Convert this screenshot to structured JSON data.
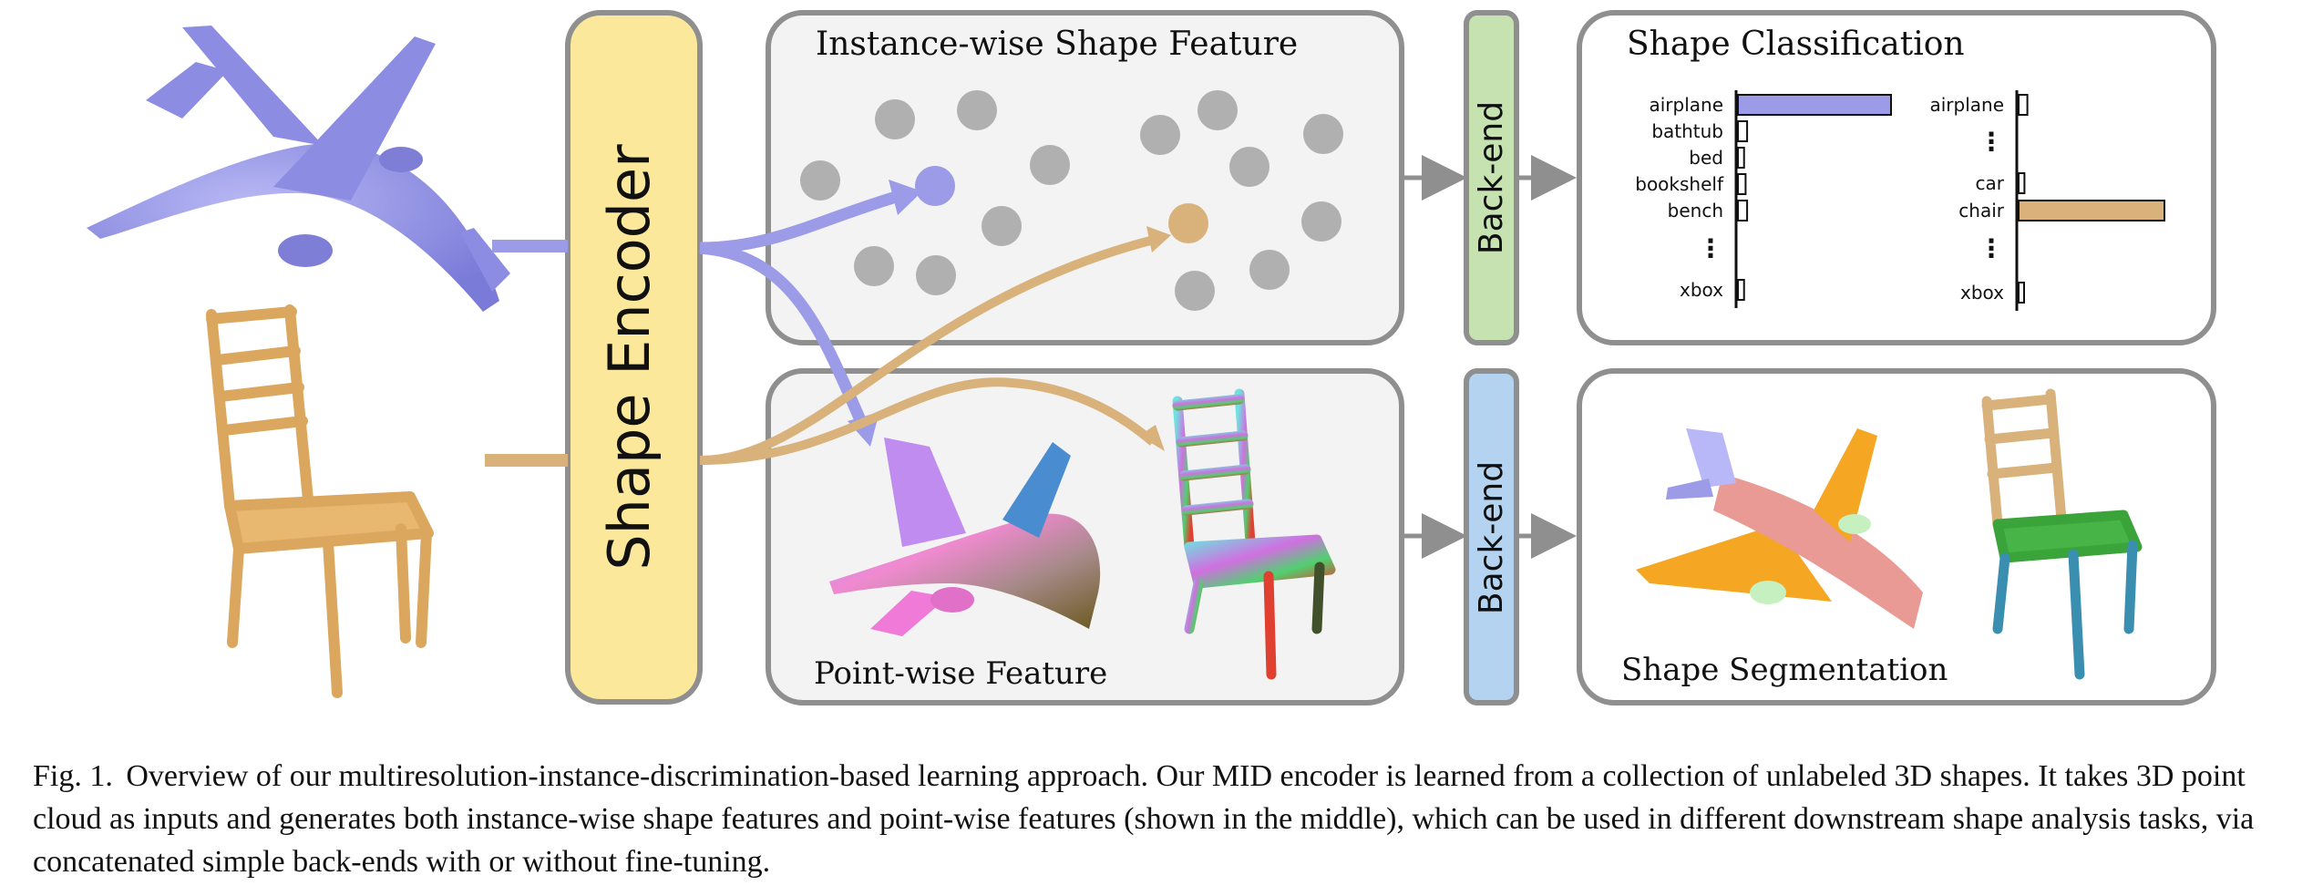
{
  "encoder": {
    "label": "Shape Encoder"
  },
  "panels": {
    "instance_feature": {
      "title": "Instance-wise Shape Feature"
    },
    "point_feature": {
      "title": "Point-wise Feature"
    },
    "classification": {
      "title": "Shape Classification"
    },
    "segmentation": {
      "title": "Shape Segmentation"
    }
  },
  "backend": {
    "top_label": "Back-end",
    "bottom_label": "Back-end"
  },
  "classification_charts": {
    "airplane": {
      "rows": [
        {
          "label": "airplane",
          "value": 1.0
        },
        {
          "label": "bathtub",
          "value": 0.06
        },
        {
          "label": "bed",
          "value": 0.04
        },
        {
          "label": "bookshelf",
          "value": 0.05
        },
        {
          "label": "bench",
          "value": 0.06
        },
        {
          "label": "⋮",
          "value": null
        },
        {
          "label": "xbox",
          "value": 0.04
        }
      ]
    },
    "chair": {
      "rows": [
        {
          "label": "airplane",
          "value": 0.06
        },
        {
          "label": "⋮",
          "value": null
        },
        {
          "label": "car",
          "value": 0.04
        },
        {
          "label": "chair",
          "value": 1.0
        },
        {
          "label": "⋮",
          "value": null
        },
        {
          "label": "xbox",
          "value": 0.03
        }
      ]
    }
  },
  "colors": {
    "airplane": "#9b9be8",
    "chair": "#d8b27a",
    "encoder_fill": "#fbe89a",
    "backend_top": "#c5e2b0",
    "backend_bottom": "#b3d3f0",
    "panel_fill": "#f3f3f3",
    "panel_stroke": "#8f8f8f",
    "feature_dot": "#b0b0b0"
  },
  "caption": {
    "label": "Fig. 1.",
    "text": "Overview of our multiresolution-instance-discrimination-based learning approach. Our MID encoder is learned from a collection of unlabeled 3D shapes. It takes 3D point cloud as inputs and generates both instance-wise shape features and point-wise features (shown in the middle), which can be used in different downstream shape analysis tasks, via concatenated simple back-ends with or without fine-tuning."
  }
}
